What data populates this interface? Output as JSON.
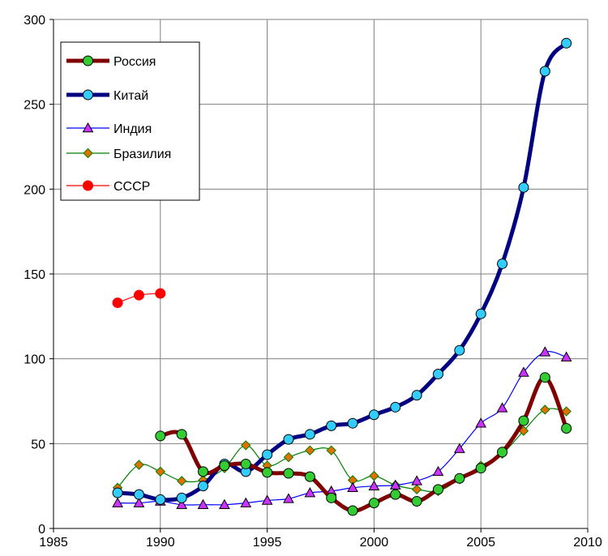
{
  "chart_data": {
    "type": "line",
    "title": "",
    "xlabel": "",
    "ylabel": "",
    "xlim": [
      1985,
      2010
    ],
    "ylim": [
      0,
      300
    ],
    "xticks": [
      1985,
      1990,
      1995,
      2000,
      2005,
      2010
    ],
    "yticks": [
      0,
      50,
      100,
      150,
      200,
      250,
      300
    ],
    "grid": true,
    "legend_position": "top-left",
    "series": [
      {
        "name": "Россия",
        "color": "#7f0000",
        "marker": "circle",
        "marker_fill": "#33cc33",
        "line_width": 5,
        "smooth": true,
        "x": [
          1990,
          1991,
          1992,
          1993,
          1994,
          1995,
          1996,
          1997,
          1998,
          1999,
          2000,
          2001,
          2002,
          2003,
          2004,
          2005,
          2006,
          2007,
          2008,
          2009
        ],
        "values": [
          54.5,
          55.5,
          33.5,
          37,
          38,
          33,
          32.5,
          30.5,
          18,
          10.5,
          15,
          20,
          16,
          23,
          29.5,
          35.5,
          45,
          63.5,
          89,
          59
        ]
      },
      {
        "name": "Китай",
        "color": "#000080",
        "marker": "circle",
        "marker_fill": "#33ccff",
        "line_width": 5,
        "smooth": true,
        "x": [
          1988,
          1989,
          1990,
          1991,
          1992,
          1993,
          1994,
          1995,
          1996,
          1997,
          1998,
          1999,
          2000,
          2001,
          2002,
          2003,
          2004,
          2005,
          2006,
          2007,
          2008,
          2009
        ],
        "values": [
          21,
          20,
          17,
          18,
          25,
          38,
          33.5,
          43.5,
          52.5,
          55.5,
          60.5,
          62,
          67,
          71.5,
          78.5,
          91,
          105,
          126.5,
          156,
          201,
          269.5,
          286
        ]
      },
      {
        "name": "Индия",
        "color": "#0000ff",
        "marker": "triangle",
        "marker_fill": "#cc33ff",
        "line_width": 1.2,
        "smooth": true,
        "x": [
          1988,
          1989,
          1990,
          1991,
          1992,
          1993,
          1994,
          1995,
          1996,
          1997,
          1998,
          1999,
          2000,
          2001,
          2002,
          2003,
          2004,
          2005,
          2006,
          2007,
          2008,
          2009
        ],
        "values": [
          15,
          15,
          16,
          14,
          14,
          14,
          15,
          16.5,
          17.5,
          21,
          22,
          24,
          25,
          25.5,
          28,
          33.5,
          47,
          62,
          71,
          92,
          104,
          101
        ]
      },
      {
        "name": "Бразилия",
        "color": "#008000",
        "marker": "diamond",
        "marker_fill": "#e07000",
        "line_width": 1.2,
        "smooth": true,
        "x": [
          1988,
          1989,
          1990,
          1991,
          1992,
          1993,
          1994,
          1995,
          1996,
          1997,
          1998,
          1999,
          2000,
          2001,
          2002,
          2003,
          2004,
          2005,
          2006,
          2007,
          2008,
          2009
        ],
        "values": [
          24,
          37.5,
          33.5,
          28,
          28.5,
          35.5,
          49,
          37,
          42,
          46,
          46,
          28.5,
          31,
          25.5,
          23,
          22,
          29,
          37,
          44,
          57.5,
          70,
          69
        ]
      },
      {
        "name": "СССР",
        "color": "#ff0000",
        "marker": "circle",
        "marker_fill": "#ff0000",
        "line_width": 1.2,
        "smooth": true,
        "x": [
          1988,
          1989,
          1990
        ],
        "values": [
          133,
          137.5,
          138.5
        ]
      }
    ]
  }
}
